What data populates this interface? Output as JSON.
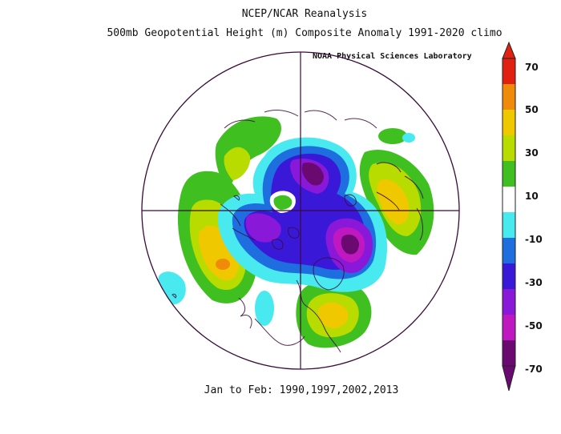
{
  "title": {
    "line1": "NCEP/NCAR Reanalysis",
    "line2": "500mb Geopotential Height (m) Composite Anomaly 1991-2020 climo"
  },
  "credit": "NOAA Physical Sciences Laboratory",
  "footer": "Jan to Feb: 1990,1997,2002,2013",
  "colorbar": {
    "labels": [
      "70",
      "50",
      "30",
      "10",
      "-10",
      "-30",
      "-50",
      "-70"
    ],
    "colors": [
      "#e02010",
      "#f08a0a",
      "#f0c800",
      "#b8dc00",
      "#40c020",
      "#ffffff",
      "#48eaf0",
      "#1e6ee0",
      "#3a18d8",
      "#8a18d8",
      "#c018c0",
      "#6a0a70"
    ]
  },
  "map": {
    "projection": "north-polar-stereographic",
    "features": [
      {
        "name": "negative-anomaly-polar",
        "sign": "negative",
        "value": -60
      },
      {
        "name": "negative-anomaly-europe-scandinavia",
        "sign": "negative",
        "value": -70
      },
      {
        "name": "negative-anomaly-western-asia",
        "sign": "negative",
        "value": -40
      },
      {
        "name": "positive-anomaly-central-pacific",
        "sign": "positive",
        "value": 40
      },
      {
        "name": "positive-anomaly-north-america",
        "sign": "positive",
        "value": 30
      },
      {
        "name": "positive-anomaly-east-asia",
        "sign": "positive",
        "value": 25
      },
      {
        "name": "positive-anomaly-atlantic",
        "sign": "positive",
        "value": 20
      }
    ]
  }
}
